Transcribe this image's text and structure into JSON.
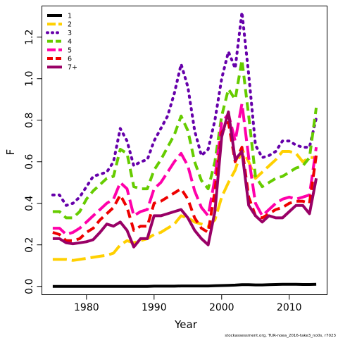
{
  "chart_data": {
    "type": "line",
    "title": "",
    "xlabel": "Year",
    "ylabel": "F",
    "xlim": [
      1973.4,
      2015.6
    ],
    "ylim": [
      -0.04,
      1.35
    ],
    "xticks": [
      1980,
      1990,
      2000,
      2010
    ],
    "yticks": [
      0.0,
      0.2,
      0.4,
      0.6,
      0.8,
      1.0,
      1.2
    ],
    "ytick_labels": [
      "0.0",
      "0.2",
      "0.4",
      "0.6",
      "0.8",
      "1.0",
      "1.2"
    ],
    "grid": false,
    "legend": "top-left",
    "x": [
      1975,
      1976,
      1977,
      1978,
      1979,
      1980,
      1981,
      1982,
      1983,
      1984,
      1985,
      1986,
      1987,
      1988,
      1989,
      1990,
      1991,
      1992,
      1993,
      1994,
      1995,
      1996,
      1997,
      1998,
      1999,
      2000,
      2001,
      2002,
      2003,
      2004,
      2005,
      2006,
      2007,
      2008,
      2009,
      2010,
      2011,
      2012,
      2013,
      2014
    ],
    "series": [
      {
        "name": "1",
        "color": "#000000",
        "dash": "solid",
        "values": [
          0.0,
          0.0,
          0.0,
          0.0,
          0.0,
          0.0,
          0.0,
          0.0,
          0.0,
          0.0,
          0.0,
          0.0,
          0.0,
          0.0,
          0.0,
          0.001,
          0.001,
          0.001,
          0.001,
          0.002,
          0.002,
          0.002,
          0.002,
          0.002,
          0.003,
          0.004,
          0.005,
          0.006,
          0.008,
          0.008,
          0.007,
          0.007,
          0.008,
          0.009,
          0.01,
          0.01,
          0.01,
          0.009,
          0.009,
          0.01
        ]
      },
      {
        "name": "2",
        "color": "#FFD000",
        "dash": "longdash",
        "values": [
          0.13,
          0.13,
          0.13,
          0.125,
          0.13,
          0.135,
          0.14,
          0.145,
          0.15,
          0.16,
          0.2,
          0.22,
          0.21,
          0.22,
          0.23,
          0.25,
          0.26,
          0.28,
          0.3,
          0.34,
          0.33,
          0.31,
          0.3,
          0.29,
          0.32,
          0.43,
          0.5,
          0.56,
          0.66,
          0.6,
          0.52,
          0.55,
          0.58,
          0.61,
          0.65,
          0.65,
          0.64,
          0.6,
          0.62,
          0.62
        ]
      },
      {
        "name": "3",
        "color": "#6600AA",
        "dash": "dotted",
        "values": [
          0.44,
          0.44,
          0.39,
          0.4,
          0.43,
          0.48,
          0.53,
          0.54,
          0.55,
          0.6,
          0.76,
          0.7,
          0.58,
          0.6,
          0.61,
          0.7,
          0.76,
          0.82,
          0.93,
          1.07,
          0.96,
          0.75,
          0.63,
          0.66,
          0.8,
          1.0,
          1.13,
          1.05,
          1.32,
          1.02,
          0.68,
          0.62,
          0.63,
          0.65,
          0.7,
          0.7,
          0.68,
          0.67,
          0.67,
          0.81
        ]
      },
      {
        "name": "4",
        "color": "#66CC00",
        "dash": "dashed",
        "values": [
          0.36,
          0.36,
          0.33,
          0.33,
          0.36,
          0.42,
          0.46,
          0.49,
          0.52,
          0.53,
          0.66,
          0.64,
          0.48,
          0.47,
          0.47,
          0.56,
          0.61,
          0.67,
          0.73,
          0.82,
          0.75,
          0.6,
          0.51,
          0.47,
          0.6,
          0.82,
          0.95,
          0.9,
          1.09,
          0.82,
          0.53,
          0.48,
          0.5,
          0.52,
          0.53,
          0.55,
          0.57,
          0.58,
          0.62,
          0.86
        ]
      },
      {
        "name": "5",
        "color": "#FF00AA",
        "dash": "longdash",
        "values": [
          0.28,
          0.28,
          0.25,
          0.26,
          0.28,
          0.31,
          0.34,
          0.37,
          0.4,
          0.42,
          0.5,
          0.47,
          0.34,
          0.36,
          0.37,
          0.47,
          0.5,
          0.55,
          0.6,
          0.64,
          0.58,
          0.46,
          0.38,
          0.34,
          0.52,
          0.79,
          0.83,
          0.7,
          0.88,
          0.62,
          0.4,
          0.34,
          0.37,
          0.4,
          0.42,
          0.43,
          0.42,
          0.43,
          0.44,
          0.67
        ]
      },
      {
        "name": "6",
        "color": "#EE0000",
        "dash": "dashed",
        "values": [
          0.26,
          0.25,
          0.22,
          0.22,
          0.23,
          0.26,
          0.28,
          0.32,
          0.35,
          0.38,
          0.44,
          0.38,
          0.27,
          0.29,
          0.29,
          0.4,
          0.41,
          0.43,
          0.45,
          0.47,
          0.42,
          0.33,
          0.28,
          0.26,
          0.46,
          0.74,
          0.79,
          0.6,
          0.67,
          0.43,
          0.34,
          0.33,
          0.35,
          0.37,
          0.38,
          0.4,
          0.41,
          0.41,
          0.4,
          0.63
        ]
      },
      {
        "name": "7+",
        "color": "#990066",
        "dash": "solid",
        "values": [
          0.23,
          0.23,
          0.21,
          0.205,
          0.21,
          0.215,
          0.225,
          0.26,
          0.3,
          0.29,
          0.31,
          0.27,
          0.19,
          0.23,
          0.23,
          0.34,
          0.34,
          0.35,
          0.36,
          0.37,
          0.33,
          0.27,
          0.23,
          0.2,
          0.36,
          0.72,
          0.84,
          0.61,
          0.65,
          0.39,
          0.34,
          0.31,
          0.34,
          0.33,
          0.33,
          0.36,
          0.39,
          0.39,
          0.35,
          0.52
        ]
      }
    ]
  },
  "footer": "stockassessment.org, TUR-noea_2016-take3_no0s, r7023"
}
